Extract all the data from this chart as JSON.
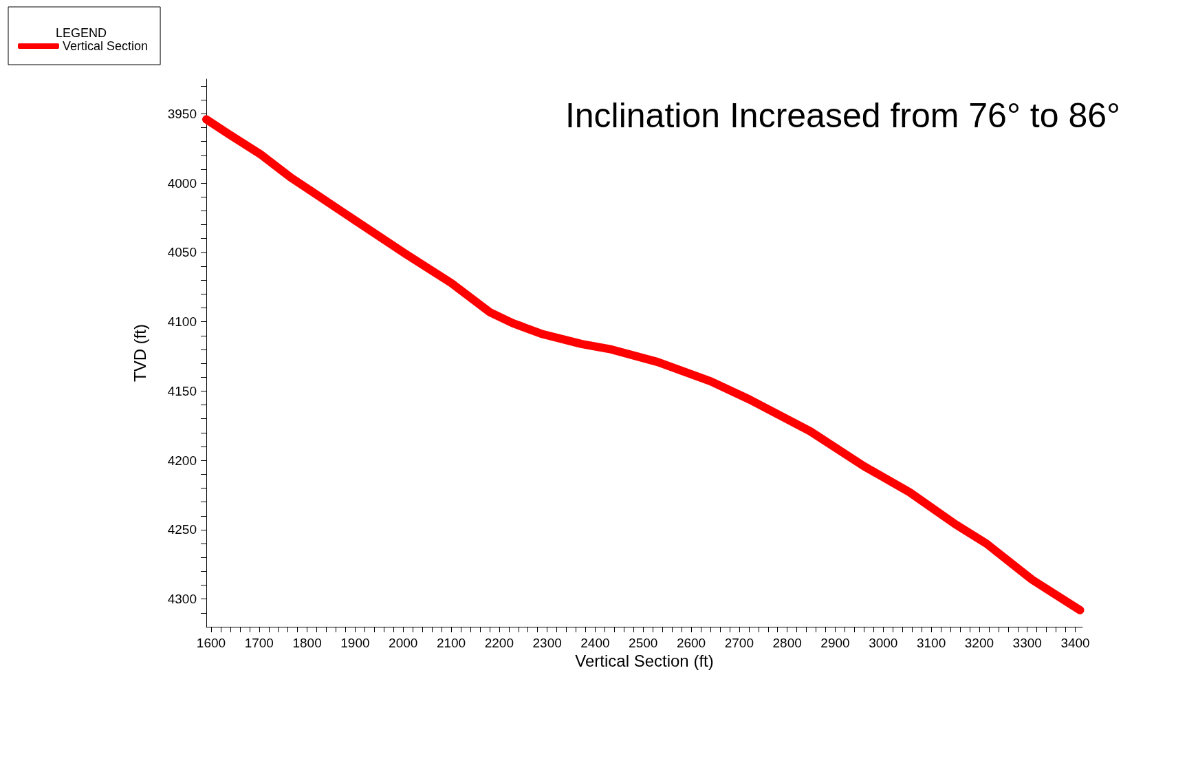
{
  "chart_data": {
    "type": "line",
    "title": "Inclination Increased from 76° to 86°",
    "xlabel": "Vertical Section (ft)",
    "ylabel": "TVD (ft)",
    "legend_title": "LEGEND",
    "legend": "top left",
    "grid": false,
    "line_style": "solid",
    "series": [
      {
        "name": "Vertical Section",
        "color": "#ff0000",
        "x": [
          1590,
          1638,
          1702,
          1766,
          1814,
          1909,
          2005,
          2100,
          2180,
          2228,
          2291,
          2371,
          2434,
          2530,
          2641,
          2721,
          2848,
          2959,
          3055,
          3150,
          3215,
          3310,
          3410
        ],
        "values": [
          3954,
          3965,
          3979,
          3996,
          4007,
          4029,
          4051,
          4072,
          4093,
          4101,
          4109,
          4116,
          4120,
          4129,
          4143,
          4156,
          4179,
          4204,
          4223,
          4246,
          4260,
          4286,
          4308
        ]
      }
    ],
    "xlim": [
      1590,
      3415
    ],
    "ylim": [
      4320,
      3925
    ],
    "xticks": [
      1600,
      {
        "value": 1620,
        "label": null
      },
      {
        "value": 1640,
        "label": null
      },
      {
        "value": 1660,
        "label": null
      },
      {
        "value": 1680,
        "label": null
      },
      1700,
      {
        "value": 1720,
        "label": null
      },
      {
        "value": 1740,
        "label": null
      },
      {
        "value": 1760,
        "label": null
      },
      {
        "value": 1780,
        "label": null
      },
      1800,
      {
        "value": 1820,
        "label": null
      },
      {
        "value": 1840,
        "label": null
      },
      {
        "value": 1860,
        "label": null
      },
      {
        "value": 1880,
        "label": null
      },
      1900,
      {
        "value": 1920,
        "label": null
      },
      {
        "value": 1940,
        "label": null
      },
      {
        "value": 1960,
        "label": null
      },
      {
        "value": 1980,
        "label": null
      },
      2000,
      {
        "value": 2020,
        "label": null
      },
      {
        "value": 2040,
        "label": null
      },
      {
        "value": 2060,
        "label": null
      },
      {
        "value": 2080,
        "label": null
      },
      2100,
      {
        "value": 2120,
        "label": null
      },
      {
        "value": 2140,
        "label": null
      },
      {
        "value": 2160,
        "label": null
      },
      {
        "value": 2180,
        "label": null
      },
      2200,
      {
        "value": 2220,
        "label": null
      },
      {
        "value": 2240,
        "label": null
      },
      {
        "value": 2260,
        "label": null
      },
      {
        "value": 2280,
        "label": null
      },
      2300,
      {
        "value": 2320,
        "label": null
      },
      {
        "value": 2340,
        "label": null
      },
      {
        "value": 2360,
        "label": null
      },
      {
        "value": 2380,
        "label": null
      },
      2400,
      {
        "value": 2420,
        "label": null
      },
      {
        "value": 2440,
        "label": null
      },
      {
        "value": 2460,
        "label": null
      },
      {
        "value": 2480,
        "label": null
      },
      2500,
      {
        "value": 2520,
        "label": null
      },
      {
        "value": 2540,
        "label": null
      },
      {
        "value": 2560,
        "label": null
      },
      {
        "value": 2580,
        "label": null
      },
      2600,
      {
        "value": 2620,
        "label": null
      },
      {
        "value": 2640,
        "label": null
      },
      {
        "value": 2660,
        "label": null
      },
      {
        "value": 2680,
        "label": null
      },
      2700,
      {
        "value": 2720,
        "label": null
      },
      {
        "value": 2740,
        "label": null
      },
      {
        "value": 2760,
        "label": null
      },
      {
        "value": 2780,
        "label": null
      },
      2800,
      {
        "value": 2820,
        "label": null
      },
      {
        "value": 2840,
        "label": null
      },
      {
        "value": 2860,
        "label": null
      },
      {
        "value": 2880,
        "label": null
      },
      2900,
      {
        "value": 2920,
        "label": null
      },
      {
        "value": 2940,
        "label": null
      },
      {
        "value": 2960,
        "label": null
      },
      {
        "value": 2980,
        "label": null
      },
      3000,
      {
        "value": 3020,
        "label": null
      },
      {
        "value": 3040,
        "label": null
      },
      {
        "value": 3060,
        "label": null
      },
      {
        "value": 3080,
        "label": null
      },
      3100,
      {
        "value": 3120,
        "label": null
      },
      {
        "value": 3140,
        "label": null
      },
      {
        "value": 3160,
        "label": null
      },
      {
        "value": 3180,
        "label": null
      },
      3200,
      {
        "value": 3220,
        "label": null
      },
      {
        "value": 3240,
        "label": null
      },
      {
        "value": 3260,
        "label": null
      },
      {
        "value": 3280,
        "label": null
      },
      3300,
      {
        "value": 3320,
        "label": null
      },
      {
        "value": 3340,
        "label": null
      },
      {
        "value": 3360,
        "label": null
      },
      {
        "value": 3380,
        "label": null
      },
      3400
    ],
    "yticks": [
      {
        "value": 3930,
        "label": null
      },
      {
        "value": 3940,
        "label": null
      },
      3950,
      {
        "value": 3960,
        "label": null
      },
      {
        "value": 3970,
        "label": null
      },
      {
        "value": 3980,
        "label": null
      },
      {
        "value": 3990,
        "label": null
      },
      4000,
      {
        "value": 4010,
        "label": null
      },
      {
        "value": 4020,
        "label": null
      },
      {
        "value": 4030,
        "label": null
      },
      {
        "value": 4040,
        "label": null
      },
      4050,
      {
        "value": 4060,
        "label": null
      },
      {
        "value": 4070,
        "label": null
      },
      {
        "value": 4080,
        "label": null
      },
      {
        "value": 4090,
        "label": null
      },
      4100,
      {
        "value": 4110,
        "label": null
      },
      {
        "value": 4120,
        "label": null
      },
      {
        "value": 4130,
        "label": null
      },
      {
        "value": 4140,
        "label": null
      },
      4150,
      {
        "value": 4160,
        "label": null
      },
      {
        "value": 4170,
        "label": null
      },
      {
        "value": 4180,
        "label": null
      },
      {
        "value": 4190,
        "label": null
      },
      4200,
      {
        "value": 4210,
        "label": null
      },
      {
        "value": 4220,
        "label": null
      },
      {
        "value": 4230,
        "label": null
      },
      {
        "value": 4240,
        "label": null
      },
      4250,
      {
        "value": 4260,
        "label": null
      },
      {
        "value": 4270,
        "label": null
      },
      {
        "value": 4280,
        "label": null
      },
      {
        "value": 4290,
        "label": null
      },
      4300,
      {
        "value": 4310,
        "label": null
      }
    ]
  }
}
